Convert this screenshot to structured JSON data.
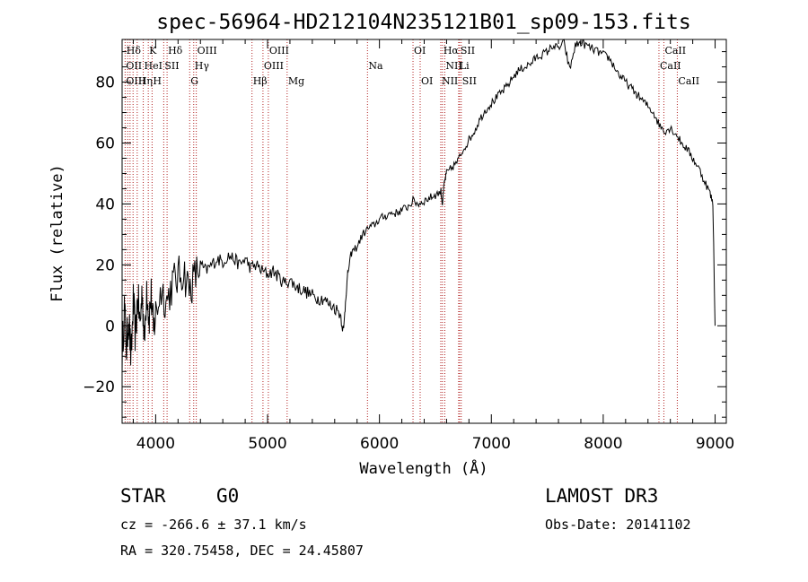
{
  "chart_data": {
    "type": "line",
    "title": "spec-56964-HD212104N235121B01_sp09-153.fits",
    "xlabel": "Wavelength (Å)",
    "ylabel": "Flux (relative)",
    "xlim": [
      3700,
      9100
    ],
    "ylim": [
      -32,
      94
    ],
    "xticks": [
      4000,
      5000,
      6000,
      7000,
      8000,
      9000
    ],
    "yticks": [
      -20,
      0,
      20,
      40,
      60,
      80
    ],
    "series": [
      {
        "name": "flux",
        "x": [
          3700,
          3720,
          3740,
          3760,
          3780,
          3800,
          3820,
          3840,
          3860,
          3880,
          3900,
          3920,
          3940,
          3960,
          3980,
          4000,
          4050,
          4100,
          4150,
          4200,
          4250,
          4300,
          4350,
          4400,
          4450,
          4500,
          4550,
          4600,
          4650,
          4700,
          4750,
          4800,
          4850,
          4900,
          4950,
          5000,
          5050,
          5100,
          5150,
          5200,
          5250,
          5300,
          5350,
          5400,
          5450,
          5500,
          5550,
          5600,
          5650,
          5680,
          5700,
          5720,
          5750,
          5800,
          5850,
          5900,
          5950,
          6000,
          6050,
          6100,
          6150,
          6200,
          6250,
          6300,
          6350,
          6400,
          6450,
          6500,
          6550,
          6563,
          6580,
          6600,
          6650,
          6700,
          6750,
          6800,
          6850,
          6900,
          6950,
          7000,
          7050,
          7100,
          7150,
          7200,
          7250,
          7300,
          7350,
          7400,
          7450,
          7500,
          7550,
          7600,
          7650,
          7700,
          7750,
          7800,
          7850,
          7900,
          7950,
          8000,
          8050,
          8100,
          8150,
          8200,
          8250,
          8300,
          8350,
          8400,
          8450,
          8500,
          8550,
          8600,
          8650,
          8700,
          8750,
          8800,
          8850,
          8900,
          8950,
          8980,
          9000
        ],
        "y": [
          -10,
          6,
          -8,
          4,
          -12,
          8,
          -4,
          10,
          0,
          12,
          -6,
          14,
          2,
          10,
          -2,
          4,
          12,
          8,
          14,
          16,
          18,
          12,
          16,
          20,
          18,
          20,
          22,
          21,
          23,
          22,
          20,
          22,
          19,
          20,
          18,
          17,
          18,
          16,
          14,
          15,
          13,
          12,
          11,
          10,
          9,
          9,
          7,
          6,
          4,
          -2,
          10,
          18,
          24,
          26,
          30,
          32,
          33,
          35,
          36,
          37,
          37,
          38,
          39,
          41,
          40,
          41,
          42,
          43,
          44,
          40,
          47,
          50,
          52,
          54,
          58,
          61,
          64,
          68,
          71,
          73,
          75,
          77,
          79,
          82,
          84,
          85,
          86,
          88,
          89,
          90,
          92,
          91,
          93,
          84,
          92,
          93,
          92,
          91,
          90,
          89,
          88,
          85,
          82,
          80,
          78,
          76,
          74,
          72,
          70,
          66,
          64,
          65,
          63,
          60,
          58,
          55,
          52,
          48,
          44,
          40,
          0
        ]
      }
    ],
    "spectral_lines": [
      {
        "label": "Hδ",
        "x": 3730,
        "row": 0
      },
      {
        "label": "K",
        "x": 3934,
        "row": 0
      },
      {
        "label": "Hδ",
        "x": 4102,
        "row": 0
      },
      {
        "label": "OIII",
        "x": 4363,
        "row": 0
      },
      {
        "label": "OIII",
        "x": 5007,
        "row": 0
      },
      {
        "label": "OI",
        "x": 6300,
        "row": 0
      },
      {
        "label": "Hα",
        "x": 6563,
        "row": 0
      },
      {
        "label": "SII",
        "x": 6716,
        "row": 0
      },
      {
        "label": "CaII",
        "x": 8542,
        "row": 0
      },
      {
        "label": "OII",
        "x": 3727,
        "row": 1
      },
      {
        "label": "HeI",
        "x": 3889,
        "row": 1
      },
      {
        "label": "SII",
        "x": 4072,
        "row": 1
      },
      {
        "label": "Hγ",
        "x": 4340,
        "row": 1
      },
      {
        "label": "OIII",
        "x": 4959,
        "row": 1
      },
      {
        "label": "Na",
        "x": 5893,
        "row": 1
      },
      {
        "label": "NII",
        "x": 6584,
        "row": 1
      },
      {
        "label": "Li",
        "x": 6708,
        "row": 1
      },
      {
        "label": "CaII",
        "x": 8498,
        "row": 1
      },
      {
        "label": "OIII",
        "x": 3727,
        "row": 2
      },
      {
        "label": "Hη",
        "x": 3835,
        "row": 2
      },
      {
        "label": "H",
        "x": 3968,
        "row": 2
      },
      {
        "label": "G",
        "x": 4304,
        "row": 2
      },
      {
        "label": "Hβ",
        "x": 4861,
        "row": 2
      },
      {
        "label": "Mg",
        "x": 5175,
        "row": 2
      },
      {
        "label": "OI",
        "x": 6364,
        "row": 2
      },
      {
        "label": "NII",
        "x": 6548,
        "row": 2
      },
      {
        "label": "SII",
        "x": 6731,
        "row": 2
      },
      {
        "label": "CaII",
        "x": 8662,
        "row": 2
      }
    ],
    "marker_lines_x": [
      3727,
      3750,
      3771,
      3798,
      3835,
      3889,
      3934,
      3968,
      4072,
      4102,
      4304,
      4340,
      4363,
      4861,
      4959,
      5007,
      5175,
      5893,
      6300,
      6364,
      6548,
      6563,
      6584,
      6708,
      6716,
      6731,
      8498,
      8542,
      8662
    ]
  },
  "info": {
    "class": "STAR",
    "subclass": "G0",
    "survey": "LAMOST DR3",
    "cz": "cz = -266.6 ± 37.1 km/s",
    "obs_date": "Obs-Date: 20141102",
    "radec": "RA = 320.75458, DEC =  24.45807"
  },
  "colors": {
    "line": "#000000",
    "marker": "#b22222"
  }
}
